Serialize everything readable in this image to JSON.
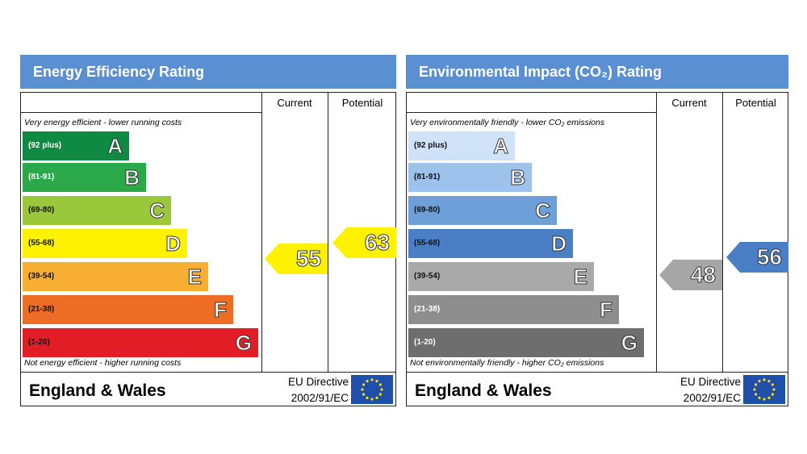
{
  "panels": [
    {
      "title": "Energy Efficiency Rating",
      "columns": [
        "Current",
        "Potential"
      ],
      "top_note": "Very energy efficient - lower running costs",
      "bottom_note": "Not energy efficient - higher running costs",
      "bands": [
        {
          "range": "(92 plus)",
          "letter": "A",
          "color": "#0f8a43"
        },
        {
          "range": "(81-91)",
          "letter": "B",
          "color": "#2ba84a"
        },
        {
          "range": "(69-80)",
          "letter": "C",
          "color": "#9bc83b"
        },
        {
          "range": "(55-68)",
          "letter": "D",
          "color": "#fff200"
        },
        {
          "range": "(39-54)",
          "letter": "E",
          "color": "#f7ae33"
        },
        {
          "range": "(21-38)",
          "letter": "F",
          "color": "#ee6d24"
        },
        {
          "range": "(1-20)",
          "letter": "G",
          "color": "#e31d25"
        }
      ],
      "current": {
        "value": "55",
        "color": "#fff200"
      },
      "potential": {
        "value": "63",
        "color": "#fff200"
      },
      "footer": {
        "region": "England & Wales",
        "directive": "EU Directive",
        "code": "2002/91/EC"
      }
    },
    {
      "title": "Environmental Impact (CO₂) Rating",
      "columns": [
        "Current",
        "Potential"
      ],
      "top_note": "Very environmentally friendly - lower CO₂ emissions",
      "bottom_note": "Not environmentally friendly - higher CO₂ emissions",
      "bands": [
        {
          "range": "(92 plus)",
          "letter": "A",
          "color": "#cfe2f7"
        },
        {
          "range": "(81-91)",
          "letter": "B",
          "color": "#9dc3ec"
        },
        {
          "range": "(69-80)",
          "letter": "C",
          "color": "#6d9fd8"
        },
        {
          "range": "(55-68)",
          "letter": "D",
          "color": "#4a7fc6"
        },
        {
          "range": "(39-54)",
          "letter": "E",
          "color": "#a9a9a9"
        },
        {
          "range": "(21-38)",
          "letter": "F",
          "color": "#8e8e8e"
        },
        {
          "range": "(1-20)",
          "letter": "G",
          "color": "#6e6e6e"
        }
      ],
      "current": {
        "value": "48",
        "color": "#a6a6a6"
      },
      "potential": {
        "value": "56",
        "color": "#4a7fc6"
      },
      "footer": {
        "region": "England & Wales",
        "directive": "EU Directive",
        "code": "2002/91/EC"
      }
    }
  ]
}
